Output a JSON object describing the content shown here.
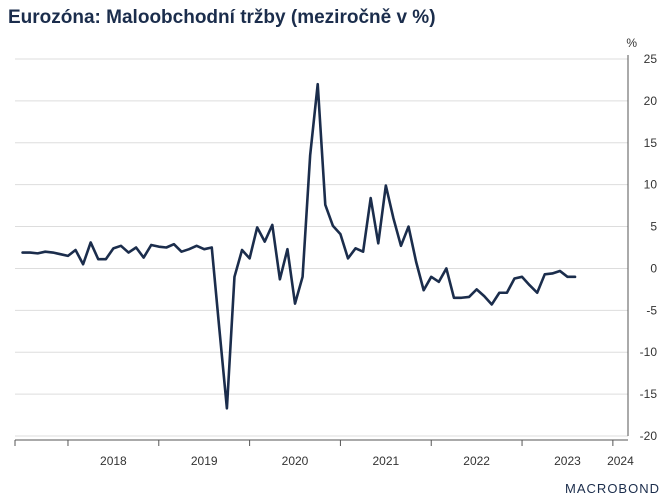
{
  "chart_data": {
    "type": "line",
    "title": "Eurozóna: Maloobchodní tržby (meziročně v %)",
    "unit": "%",
    "ylim": [
      -20,
      25
    ],
    "yticks": [
      25,
      20,
      15,
      10,
      5,
      0,
      -5,
      -10,
      -15,
      -20
    ],
    "xlim": [
      "2017-06",
      "2024-03"
    ],
    "xtick_labels": [
      "2018",
      "2019",
      "2020",
      "2021",
      "2022",
      "2023",
      "2024"
    ],
    "grid": true,
    "legend": "none",
    "line_color": "#1b2d4c",
    "series": [
      {
        "start": "2017-07",
        "frequency": "monthly",
        "values": [
          1.9,
          1.9,
          1.8,
          2.0,
          1.9,
          1.7,
          1.5,
          2.2,
          0.5,
          3.1,
          1.1,
          1.1,
          2.4,
          2.7,
          1.9,
          2.5,
          1.3,
          2.8,
          2.6,
          2.5,
          2.9,
          2.0,
          2.3,
          2.7,
          2.3,
          2.5,
          -7.2,
          -16.7,
          -1.0,
          2.2,
          1.2,
          4.9,
          3.2,
          5.2,
          -1.3,
          2.3,
          -4.2,
          -1.0,
          13.5,
          22.0,
          7.6,
          5.1,
          4.1,
          1.2,
          2.4,
          2.0,
          8.4,
          3.0,
          9.9,
          6.0,
          2.7,
          5.0,
          0.8,
          -2.6,
          -1.0,
          -1.6,
          0.0,
          -3.5,
          -3.5,
          -3.4,
          -2.5,
          -3.3,
          -4.3,
          -2.9,
          -2.9,
          -1.2,
          -1.0,
          -2.0,
          -2.9,
          -0.7,
          -0.6,
          -0.3,
          -1.0,
          -1.0
        ]
      }
    ]
  },
  "branding": {
    "label": "MACROBOND"
  }
}
